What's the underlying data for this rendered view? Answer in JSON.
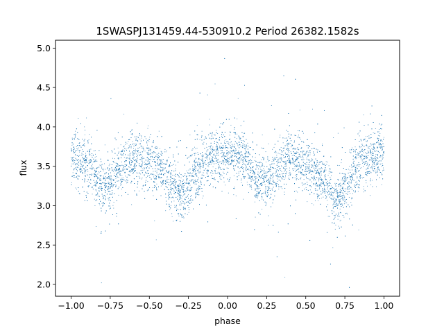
{
  "chart_data": {
    "type": "scatter",
    "title": "1SWASPJ131459.44-530910.2 Period 26382.1582s",
    "xlabel": "phase",
    "ylabel": "flux",
    "xlim": [
      -1.1,
      1.1
    ],
    "ylim": [
      1.85,
      5.1
    ],
    "xticks": [
      -1.0,
      -0.75,
      -0.5,
      -0.25,
      0.0,
      0.25,
      0.5,
      0.75,
      1.0
    ],
    "xtick_labels": [
      "−1.00",
      "−0.75",
      "−0.50",
      "−0.25",
      "0.00",
      "0.25",
      "0.50",
      "0.75",
      "1.00"
    ],
    "yticks": [
      2.0,
      2.5,
      3.0,
      3.5,
      4.0,
      4.5,
      5.0
    ],
    "ytick_labels": [
      "2.0",
      "2.5",
      "3.0",
      "3.5",
      "4.0",
      "4.5",
      "5.0"
    ],
    "grid": false,
    "marker_color": "#1f77b4",
    "light_curve": {
      "description_note": "",
      "phase": [
        -1.0,
        -0.9,
        -0.8,
        -0.75,
        -0.7,
        -0.6,
        -0.5,
        -0.4,
        -0.3,
        -0.25,
        -0.2,
        -0.1,
        0.0,
        0.1,
        0.2,
        0.25,
        0.3,
        0.4,
        0.5,
        0.6,
        0.7,
        0.75,
        0.8,
        0.9,
        1.0
      ],
      "mean_flux": [
        3.6,
        3.5,
        3.25,
        3.3,
        3.45,
        3.62,
        3.55,
        3.4,
        3.1,
        3.25,
        3.45,
        3.6,
        3.68,
        3.6,
        3.3,
        3.3,
        3.45,
        3.6,
        3.55,
        3.35,
        3.05,
        3.2,
        3.45,
        3.6,
        3.65
      ]
    }
  }
}
